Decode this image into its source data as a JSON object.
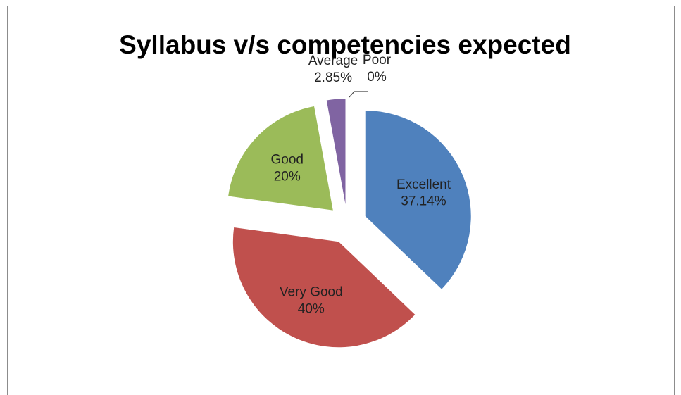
{
  "chart_data": {
    "type": "pie",
    "title": "Syllabus v/s competencies expected",
    "categories": [
      "Excellent",
      "Very Good",
      "Good",
      "Average",
      "Poor"
    ],
    "values": [
      37.14,
      40,
      20,
      2.85,
      0
    ],
    "value_labels": [
      "37.14%",
      "40%",
      "20%",
      "2.85%",
      "0%"
    ],
    "colors": [
      "#4f81bd",
      "#c0504d",
      "#9bbb59",
      "#8064a2",
      "#4bacc6"
    ]
  }
}
